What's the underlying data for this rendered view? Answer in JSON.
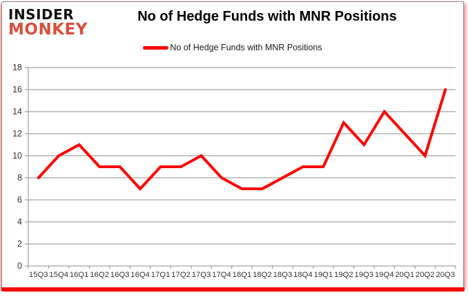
{
  "logo": {
    "line1": "INSIDER",
    "line2": "MONKEY"
  },
  "header": {
    "title": "No of Hedge Funds with MNR Positions"
  },
  "legend": {
    "label": "No of Hedge Funds with MNR Positions"
  },
  "colors": {
    "line": "#FF0000",
    "gridline": "#8c8c8c",
    "axis_line": "#8c8c8c",
    "axis_text": "#333333",
    "title_text": "#000000",
    "logo_black": "#121212",
    "logo_red": "#d6503e",
    "card_border": "#8a8a8a",
    "bottom_bar": "#FF0000"
  },
  "chart_data": {
    "type": "line",
    "title": "No of Hedge Funds with MNR Positions",
    "xlabel": "",
    "ylabel": "",
    "categories": [
      "15Q3",
      "15Q4",
      "16Q1",
      "16Q2",
      "16Q3",
      "16Q4",
      "17Q1",
      "17Q2",
      "17Q3",
      "17Q4",
      "18Q1",
      "18Q2",
      "18Q3",
      "18Q4",
      "19Q1",
      "19Q2",
      "19Q3",
      "19Q4",
      "20Q1",
      "20Q2",
      "20Q3"
    ],
    "series": [
      {
        "name": "No of Hedge Funds with MNR Positions",
        "values": [
          8,
          10,
          11,
          9,
          9,
          7,
          9,
          9,
          10,
          8,
          7,
          7,
          8,
          9,
          9,
          13,
          11,
          14,
          12,
          10,
          16
        ]
      }
    ],
    "ylim": [
      0,
      18
    ],
    "ytick_step": 2,
    "grid": true,
    "legend_position": "top"
  }
}
